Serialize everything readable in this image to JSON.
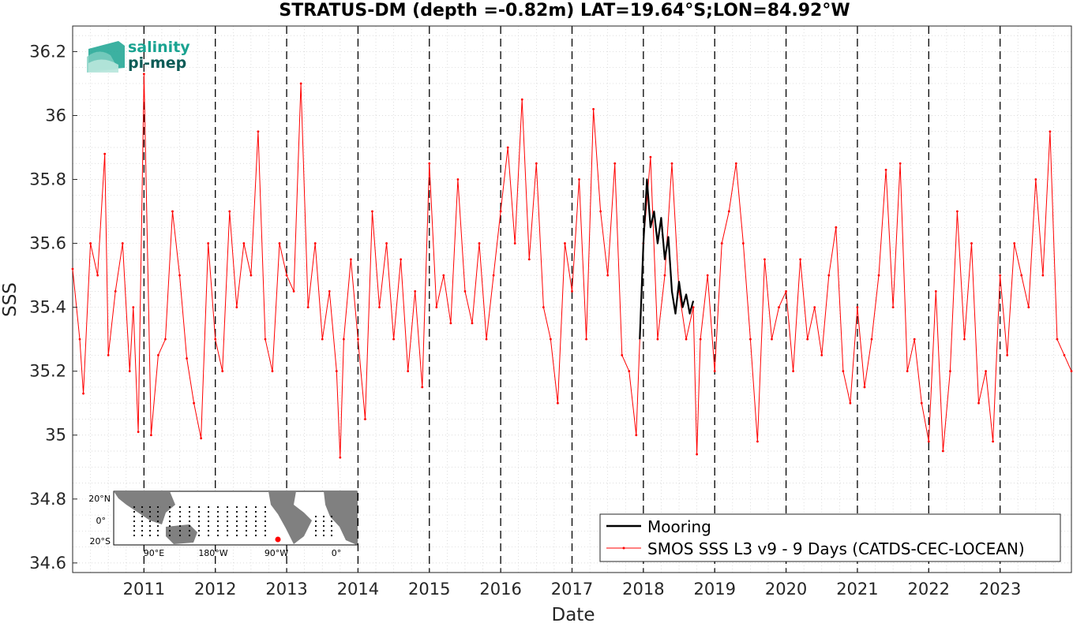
{
  "chart_data": {
    "type": "line",
    "title": "STRATUS-DM (depth =-0.82m) LAT=19.64°S;LON=84.92°W",
    "xlabel": "Date",
    "ylabel": "SSS",
    "xlim": [
      "2010-01-01",
      "2023-12-31"
    ],
    "ylim": [
      34.57,
      36.28
    ],
    "x_ticks": [
      "2011",
      "2012",
      "2013",
      "2014",
      "2015",
      "2016",
      "2017",
      "2018",
      "2019",
      "2020",
      "2021",
      "2022",
      "2023"
    ],
    "y_ticks": [
      "34.6",
      "34.8",
      "35",
      "35.2",
      "35.4",
      "35.6",
      "35.8",
      "36",
      "36.2"
    ],
    "y_tick_values": [
      34.6,
      34.8,
      35.0,
      35.2,
      35.4,
      35.6,
      35.8,
      36.0,
      36.2
    ],
    "grid": true,
    "vertical_dashed_lines_at_years": [
      2011,
      2012,
      2013,
      2014,
      2015,
      2016,
      2017,
      2018,
      2019,
      2020,
      2021,
      2022,
      2023
    ],
    "legend_position": "bottom-right",
    "series": [
      {
        "name": "Mooring",
        "color": "#000000",
        "x_year": [
          2017.95,
          2018.0,
          2018.05,
          2018.1,
          2018.15,
          2018.2,
          2018.25,
          2018.3,
          2018.35,
          2018.4,
          2018.45,
          2018.5,
          2018.55,
          2018.6,
          2018.65,
          2018.7
        ],
        "y": [
          35.3,
          35.6,
          35.8,
          35.65,
          35.7,
          35.6,
          35.68,
          35.55,
          35.62,
          35.45,
          35.38,
          35.48,
          35.4,
          35.44,
          35.38,
          35.42
        ]
      },
      {
        "name": "SMOS SSS L3 v9 - 9 Days (CATDS-CEC-LOCEAN)",
        "color": "#ff0000",
        "x_year": [
          2010.0,
          2010.1,
          2010.15,
          2010.25,
          2010.35,
          2010.45,
          2010.5,
          2010.6,
          2010.7,
          2010.8,
          2010.85,
          2010.92,
          2011.0,
          2011.1,
          2011.2,
          2011.3,
          2011.4,
          2011.5,
          2011.6,
          2011.7,
          2011.8,
          2011.9,
          2012.0,
          2012.1,
          2012.2,
          2012.3,
          2012.4,
          2012.5,
          2012.6,
          2012.7,
          2012.8,
          2012.9,
          2013.0,
          2013.1,
          2013.2,
          2013.3,
          2013.4,
          2013.5,
          2013.6,
          2013.7,
          2013.75,
          2013.8,
          2013.9,
          2014.0,
          2014.1,
          2014.2,
          2014.3,
          2014.4,
          2014.5,
          2014.6,
          2014.7,
          2014.8,
          2014.9,
          2015.0,
          2015.1,
          2015.2,
          2015.3,
          2015.4,
          2015.5,
          2015.6,
          2015.7,
          2015.8,
          2015.9,
          2016.0,
          2016.1,
          2016.2,
          2016.3,
          2016.4,
          2016.5,
          2016.6,
          2016.7,
          2016.8,
          2016.9,
          2017.0,
          2017.1,
          2017.2,
          2017.3,
          2017.4,
          2017.5,
          2017.6,
          2017.7,
          2017.8,
          2017.9,
          2018.0,
          2018.1,
          2018.2,
          2018.3,
          2018.4,
          2018.5,
          2018.6,
          2018.7,
          2018.75,
          2018.8,
          2018.9,
          2019.0,
          2019.1,
          2019.2,
          2019.3,
          2019.4,
          2019.5,
          2019.6,
          2019.7,
          2019.8,
          2019.9,
          2020.0,
          2020.1,
          2020.2,
          2020.3,
          2020.4,
          2020.5,
          2020.6,
          2020.7,
          2020.8,
          2020.9,
          2021.0,
          2021.1,
          2021.2,
          2021.3,
          2021.4,
          2021.5,
          2021.6,
          2021.7,
          2021.8,
          2021.9,
          2022.0,
          2022.1,
          2022.2,
          2022.3,
          2022.4,
          2022.5,
          2022.6,
          2022.7,
          2022.8,
          2022.9,
          2023.0,
          2023.1,
          2023.2,
          2023.3,
          2023.4,
          2023.5,
          2023.6,
          2023.7,
          2023.8,
          2023.9,
          2024.0
        ],
        "y": [
          35.52,
          35.3,
          35.13,
          35.6,
          35.5,
          35.88,
          35.25,
          35.45,
          35.6,
          35.2,
          35.4,
          35.01,
          36.13,
          35.0,
          35.25,
          35.3,
          35.7,
          35.5,
          35.24,
          35.1,
          34.99,
          35.6,
          35.3,
          35.2,
          35.7,
          35.4,
          35.6,
          35.5,
          35.95,
          35.3,
          35.2,
          35.6,
          35.5,
          35.45,
          36.1,
          35.4,
          35.6,
          35.3,
          35.45,
          35.2,
          34.93,
          35.3,
          35.55,
          35.3,
          35.05,
          35.7,
          35.4,
          35.6,
          35.3,
          35.55,
          35.2,
          35.45,
          35.15,
          35.85,
          35.4,
          35.5,
          35.35,
          35.8,
          35.45,
          35.35,
          35.6,
          35.3,
          35.5,
          35.7,
          35.9,
          35.6,
          36.05,
          35.55,
          35.85,
          35.4,
          35.3,
          35.1,
          35.6,
          35.45,
          35.8,
          35.3,
          36.02,
          35.7,
          35.5,
          35.85,
          35.25,
          35.2,
          35.0,
          35.6,
          35.87,
          35.3,
          35.5,
          35.85,
          35.45,
          35.3,
          35.4,
          34.94,
          35.3,
          35.5,
          35.2,
          35.6,
          35.7,
          35.85,
          35.6,
          35.3,
          34.98,
          35.55,
          35.3,
          35.4,
          35.45,
          35.2,
          35.55,
          35.3,
          35.4,
          35.25,
          35.5,
          35.65,
          35.2,
          35.1,
          35.4,
          35.15,
          35.3,
          35.5,
          35.83,
          35.4,
          35.85,
          35.2,
          35.3,
          35.1,
          34.98,
          35.45,
          34.95,
          35.2,
          35.7,
          35.3,
          35.6,
          35.1,
          35.2,
          34.98,
          35.5,
          35.25,
          35.6,
          35.5,
          35.4,
          35.8,
          35.5,
          35.95,
          35.3,
          35.25,
          35.2
        ]
      }
    ],
    "inset_map_labels": {
      "lat_ticks": [
        "20°N",
        "0°",
        "20°S"
      ],
      "lon_ticks": [
        "90°E",
        "180°W",
        "90°W",
        "0°"
      ]
    }
  },
  "legend": {
    "entries": [
      {
        "label": "Mooring",
        "color": "#000000"
      },
      {
        "label": "SMOS SSS L3 v9 - 9 Days (CATDS-CEC-LOCEAN)",
        "color": "#ff0000"
      }
    ]
  },
  "logo": {
    "line1": "salinity",
    "line2": "pi-mep"
  },
  "colors": {
    "accent_teal": "#1aa391",
    "accent_dark_teal": "#0d5c57",
    "map_land": "#808080"
  }
}
